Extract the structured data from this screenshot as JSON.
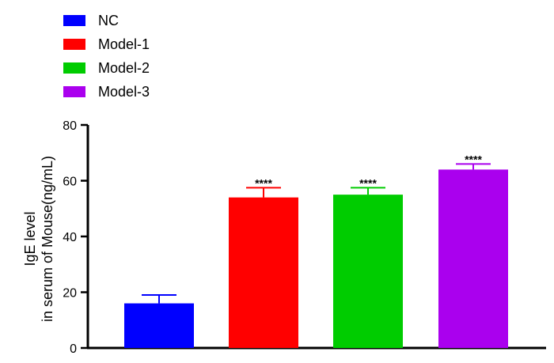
{
  "chart_data": {
    "type": "bar",
    "categories": [
      "NC",
      "Model-1",
      "Model-2",
      "Model-3"
    ],
    "values": [
      16,
      54,
      55,
      64
    ],
    "errors": [
      3,
      3.5,
      2.5,
      2
    ],
    "significance": [
      "",
      "****",
      "****",
      "****"
    ],
    "colors": [
      "#0000ff",
      "#ff0000",
      "#00cc00",
      "#aa00ee"
    ],
    "title": "",
    "ylabel_line1": "IgE level",
    "ylabel_line2": "in serum of Mouse(ng/mL)",
    "ylim": [
      0,
      80
    ],
    "yticks": [
      0,
      20,
      40,
      60,
      80
    ],
    "legend": {
      "position": "top-left",
      "entries": [
        "NC",
        "Model-1",
        "Model-2",
        "Model-3"
      ]
    },
    "grid": false
  }
}
